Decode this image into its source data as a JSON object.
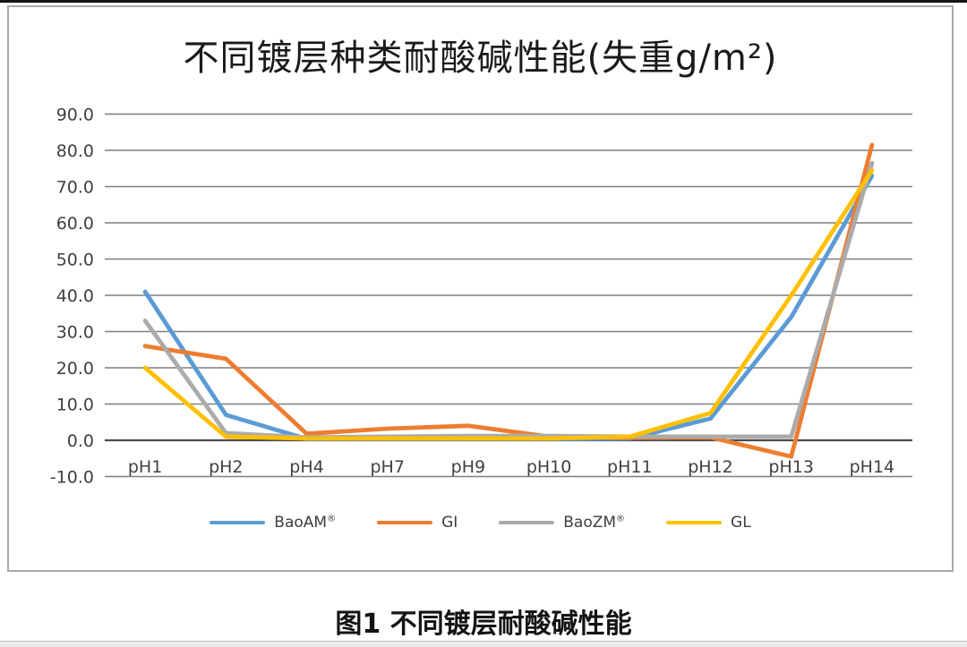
{
  "caption": "图1 不同镀层耐酸碱性能",
  "chart_data": {
    "type": "line",
    "title": "不同镀层种类耐酸碱性能(失重g/m²)",
    "categories": [
      "pH1",
      "pH2",
      "pH4",
      "pH7",
      "pH9",
      "pH10",
      "pH11",
      "pH12",
      "pH13",
      "pH14"
    ],
    "series": [
      {
        "name": "BaoAM®",
        "color": "#5B9BD5",
        "values": [
          41,
          7,
          0.4,
          0.4,
          0.4,
          0.4,
          0.5,
          6,
          34,
          73
        ]
      },
      {
        "name": "GI",
        "color": "#ED7D31",
        "values": [
          26,
          22.5,
          1.8,
          3.2,
          4,
          1,
          0.7,
          0.8,
          -4.5,
          81.5
        ]
      },
      {
        "name": "BaoZM®",
        "color": "#ABABAB",
        "values": [
          33,
          2,
          0.8,
          1,
          1.2,
          1.2,
          1,
          1,
          1,
          76.5
        ]
      },
      {
        "name": "GL",
        "color": "#FFC000",
        "values": [
          20,
          1,
          0.5,
          0.5,
          0.5,
          0.5,
          1,
          7.5,
          40,
          74.5
        ]
      }
    ],
    "xlabel": "",
    "ylabel": "",
    "ylim": [
      -10,
      90
    ],
    "ytick_step": 10,
    "yticks": [
      "90.0",
      "80.0",
      "70.0",
      "60.0",
      "50.0",
      "40.0",
      "30.0",
      "20.0",
      "10.0",
      "0.0",
      "-10.0"
    ],
    "grid": "horizontal",
    "legend_position": "bottom",
    "colors": {
      "gridline": "#7f7f7f",
      "zero_axis": "#4a4a4a",
      "tick_text": "#404040"
    }
  }
}
